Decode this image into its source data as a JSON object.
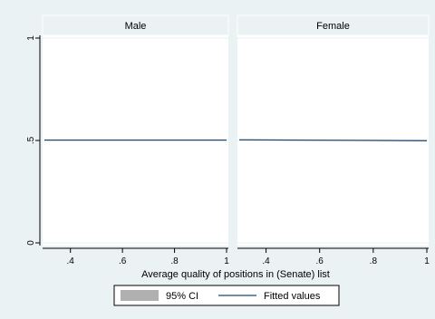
{
  "chart_data": {
    "type": "line",
    "xlabel": "Average quality of positions in (Senate) list",
    "ylabel": "",
    "xlim": [
      0.3,
      1.0
    ],
    "ylim": [
      0,
      1
    ],
    "x_ticks": [
      0.4,
      0.6,
      0.8,
      1.0
    ],
    "x_tick_labels": [
      ".4",
      ".6",
      ".8",
      "1"
    ],
    "y_ticks": [
      0,
      0.5,
      1
    ],
    "y_tick_labels": [
      "0",
      ".5",
      "1"
    ],
    "grid": true,
    "legend_position": "bottom",
    "legend": [
      "95% CI",
      "Fitted values"
    ],
    "colors": {
      "outer_bg": "#eaf2f3",
      "plot_bg": "#ffffff",
      "strip_bg": "#eaf2f3",
      "ci": "#b0b0b0",
      "fit": "#1a476f",
      "grid": "#eaf2f3",
      "legend_box_bg": "#ffffff"
    },
    "panels": [
      {
        "title": "Male",
        "fitted": {
          "x": [
            0.3,
            1.0
          ],
          "y": [
            0.502,
            0.502
          ]
        },
        "ci_lower": {
          "x": [
            0.3,
            1.0
          ],
          "y": [
            0.499,
            0.499
          ]
        },
        "ci_upper": {
          "x": [
            0.3,
            1.0
          ],
          "y": [
            0.505,
            0.505
          ]
        }
      },
      {
        "title": "Female",
        "fitted": {
          "x": [
            0.3,
            1.0
          ],
          "y": [
            0.503,
            0.499
          ]
        },
        "ci_lower": {
          "x": [
            0.3,
            1.0
          ],
          "y": [
            0.5,
            0.496
          ]
        },
        "ci_upper": {
          "x": [
            0.3,
            1.0
          ],
          "y": [
            0.506,
            0.502
          ]
        }
      }
    ]
  }
}
